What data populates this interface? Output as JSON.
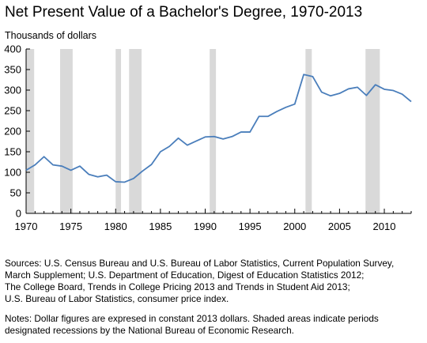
{
  "chart_data": {
    "type": "line",
    "title": "Net Present Value of a Bachelor's Degree, 1970-2013",
    "unit_label": "Thousands of dollars",
    "xlabel": "",
    "ylabel": "Thousands of dollars",
    "xlim": [
      1970,
      2013
    ],
    "ylim": [
      0,
      400
    ],
    "x_ticks": [
      1970,
      1975,
      1980,
      1985,
      1990,
      1995,
      2000,
      2005,
      2010
    ],
    "y_ticks": [
      0,
      50,
      100,
      150,
      200,
      250,
      300,
      350,
      400
    ],
    "grid": false,
    "legend": "none",
    "line_color": "#4a7ebb",
    "shade_color": "#d9d9d9",
    "recessions": [
      [
        1969.9,
        1970.9
      ],
      [
        1973.8,
        1975.2
      ],
      [
        1980.0,
        1980.6
      ],
      [
        1981.5,
        1982.9
      ],
      [
        1990.5,
        1991.2
      ],
      [
        2001.2,
        2001.9
      ],
      [
        2007.9,
        2009.5
      ]
    ],
    "series": [
      {
        "x": [
          1970,
          1971,
          1972,
          1973,
          1974,
          1975,
          1976,
          1977,
          1978,
          1979,
          1980,
          1981,
          1982,
          1983,
          1984,
          1985,
          1986,
          1987,
          1988,
          1989,
          1990,
          1991,
          1992,
          1993,
          1994,
          1995,
          1996,
          1997,
          1998,
          1999,
          2000,
          2001,
          2002,
          2003,
          2004,
          2005,
          2006,
          2007,
          2008,
          2009,
          2010,
          2011,
          2012,
          2013
        ],
        "values": [
          105,
          118,
          138,
          118,
          115,
          105,
          115,
          95,
          89,
          93,
          77,
          76,
          85,
          103,
          119,
          150,
          163,
          183,
          166,
          176,
          186,
          187,
          181,
          187,
          198,
          198,
          236,
          236,
          248,
          258,
          266,
          338,
          333,
          295,
          286,
          292,
          303,
          307,
          287,
          313,
          302,
          299,
          290,
          272
        ]
      }
    ]
  },
  "sources": [
    "Sources: U.S. Census Bureau and U.S. Bureau of Labor Statistics, Current Population Survey,",
    "March Supplement; U.S. Department of Education, Digest of Education Statistics 2012;",
    "The College Board, Trends in College Pricing 2013 and Trends in Student Aid 2013;",
    "U.S. Bureau of Labor Statistics, consumer price index."
  ],
  "notes": [
    "Notes: Dollar figures are expresed in constant 2013 dollars. Shaded areas indicate periods",
    "designated recessions by the National Bureau of Economic Research."
  ]
}
